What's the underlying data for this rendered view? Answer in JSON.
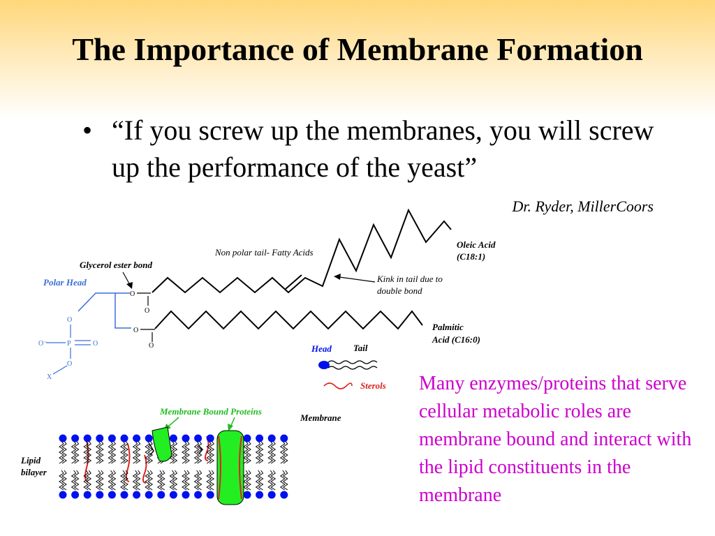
{
  "slide": {
    "title": "The Importance of Membrane Formation",
    "bullet_symbol": "•",
    "quote": "“If you screw up the membranes, you will screw up the performance of the yeast”",
    "attribution": "Dr. Ryder, MillerCoors",
    "note": "Many enzymes/proteins that serve cellular metabolic roles are membrane bound and interact with the lipid constituents in the membrane"
  },
  "diagram": {
    "nonpolar_tail_label": "Non polar tail- Fatty Acids",
    "glycerol_label": "Glycerol ester bond",
    "polar_head_label": "Polar Head",
    "oleic_line1": "Oleic Acid",
    "oleic_line2": "(C18:1)",
    "kink_line1": "Kink in tail due to",
    "kink_line2": "double bond",
    "palmitic_line1": "Palmitic",
    "palmitic_line2": "Acid (C16:0)",
    "atom_o": "O",
    "atom_o_minus": "O⁻",
    "atom_p": "P",
    "atom_x": "X",
    "legend_head": "Head",
    "legend_tail": "Tail",
    "legend_sterols": "Sterols",
    "membrane_bound_label": "Membrane Bound  Proteins",
    "membrane_label": "Membrane",
    "lipid_line1": "Lipid",
    "lipid_line2": "bilayer"
  },
  "colors": {
    "note": "#cc00cc",
    "polar_head": "#3a6fd8",
    "protein": "#22ee22",
    "protein_label": "#22bb22",
    "sterol": "#dd2222",
    "lipid_head": "#0010ee"
  }
}
